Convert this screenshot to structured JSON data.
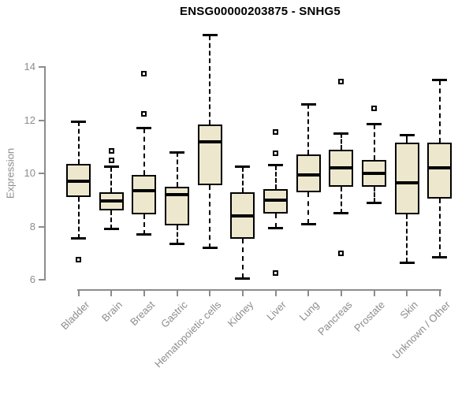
{
  "title": "ENSG00000203875 - SNHG5",
  "chart_data": {
    "type": "boxplot",
    "title": "ENSG00000203875 - SNHG5",
    "ylabel": "Expression",
    "xlabel": "",
    "ylim": [
      6,
      14
    ],
    "yticks": [
      6,
      8,
      10,
      12,
      14
    ],
    "grid": false,
    "legend": false,
    "categories": [
      "Bladder",
      "Brain",
      "Breast",
      "Gastric",
      "Hematopoietic cells",
      "Kidney",
      "Liver",
      "Lung",
      "Pancreas",
      "Prostate",
      "Skin",
      "Unknown / Other"
    ],
    "series": [
      {
        "name": "Bladder",
        "low": 7.55,
        "q1": 9.1,
        "median": 9.7,
        "q3": 10.35,
        "high": 11.95,
        "outliers": [
          6.75
        ]
      },
      {
        "name": "Brain",
        "low": 7.9,
        "q1": 8.6,
        "median": 8.95,
        "q3": 9.3,
        "high": 10.25,
        "outliers": [
          10.5,
          10.85
        ]
      },
      {
        "name": "Breast",
        "low": 7.7,
        "q1": 8.45,
        "median": 9.35,
        "q3": 9.95,
        "high": 11.7,
        "outliers": [
          12.25,
          13.75
        ]
      },
      {
        "name": "Gastric",
        "low": 7.35,
        "q1": 8.05,
        "median": 9.2,
        "q3": 9.5,
        "high": 10.8,
        "outliers": []
      },
      {
        "name": "Hematopoietic cells",
        "low": 7.2,
        "q1": 9.55,
        "median": 11.2,
        "q3": 11.85,
        "high": 15.2,
        "outliers": []
      },
      {
        "name": "Kidney",
        "low": 6.05,
        "q1": 7.55,
        "median": 8.4,
        "q3": 9.3,
        "high": 10.25,
        "outliers": []
      },
      {
        "name": "Liver",
        "low": 7.95,
        "q1": 8.5,
        "median": 9.0,
        "q3": 9.4,
        "high": 10.3,
        "outliers": [
          11.55,
          10.75,
          6.25
        ]
      },
      {
        "name": "Lung",
        "low": 8.1,
        "q1": 9.3,
        "median": 9.95,
        "q3": 10.7,
        "high": 12.6,
        "outliers": []
      },
      {
        "name": "Pancreas",
        "low": 8.5,
        "q1": 9.5,
        "median": 10.2,
        "q3": 10.9,
        "high": 11.5,
        "outliers": [
          13.45,
          7.0
        ]
      },
      {
        "name": "Prostate",
        "low": 8.9,
        "q1": 9.5,
        "median": 10.0,
        "q3": 10.5,
        "high": 11.85,
        "outliers": [
          12.45
        ]
      },
      {
        "name": "Skin",
        "low": 6.65,
        "q1": 8.45,
        "median": 9.65,
        "q3": 11.15,
        "high": 11.45,
        "outliers": []
      },
      {
        "name": "Unknown / Other",
        "low": 6.85,
        "q1": 9.05,
        "median": 10.2,
        "q3": 11.15,
        "high": 13.5,
        "outliers": []
      }
    ],
    "colors": {
      "box_fill": "#EDE8CD",
      "box_border": "#000000",
      "median": "#000000",
      "whisker": "#000000",
      "axis": "#8C8C8C",
      "tick_label": "#8C8C8C",
      "title": "#000000",
      "background": "#FFFFFF"
    }
  }
}
